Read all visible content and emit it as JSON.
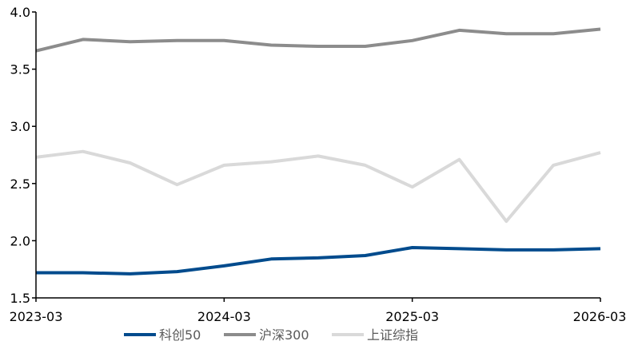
{
  "chart_data": {
    "type": "line",
    "title": "",
    "xlabel": "",
    "ylabel": "",
    "ylim": [
      1.5,
      4.0
    ],
    "yticks": [
      "1.5",
      "2.0",
      "2.5",
      "3.0",
      "3.5",
      "4.0"
    ],
    "x": [
      "2023-03",
      "2023-06",
      "2023-09",
      "2023-12",
      "2024-03",
      "2024-06",
      "2024-09",
      "2024-12",
      "2025-03",
      "2025-06",
      "2025-09",
      "2025-12",
      "2026-03"
    ],
    "xtick_labels": [
      "2023-03",
      "2024-03",
      "2025-03",
      "2026-03"
    ],
    "grid": false,
    "legend_position": "bottom",
    "series": [
      {
        "name": "科创50",
        "color": "#004b8d",
        "values": [
          1.72,
          1.72,
          1.71,
          1.73,
          1.78,
          1.84,
          1.85,
          1.87,
          1.94,
          1.93,
          1.92,
          1.92,
          1.93
        ]
      },
      {
        "name": "沪深300",
        "color": "#8c8c8c",
        "values": [
          3.66,
          3.76,
          3.74,
          3.75,
          3.75,
          3.71,
          3.7,
          3.7,
          3.75,
          3.84,
          3.81,
          3.81,
          3.85
        ]
      },
      {
        "name": "上证综指",
        "color": "#d9d9d9",
        "values": [
          2.73,
          2.78,
          2.68,
          2.49,
          2.66,
          2.69,
          2.74,
          2.66,
          2.47,
          2.71,
          2.17,
          2.66,
          2.77
        ]
      }
    ]
  }
}
